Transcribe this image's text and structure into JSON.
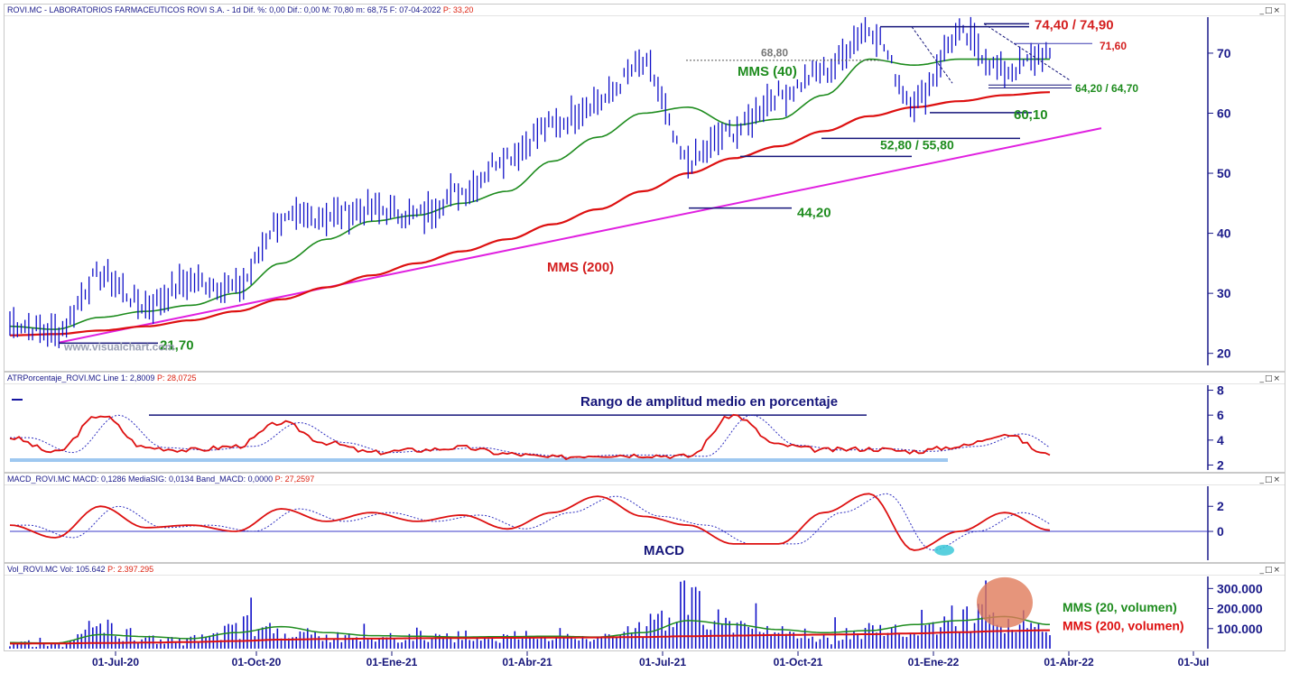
{
  "panels": {
    "price": {
      "header": "ROVI.MC - LABORATORIOS FARMACEUTICOS ROVI S.A. - 1d Dif. %: 0,00 Dif.: 0,00 M: 70,80 m: 68,75 F: 07-04-2022",
      "header_p": "P: 33,20"
    },
    "atr": {
      "header": "ATRPorcentaje_ROVI.MC Line 1: 2,8009",
      "header_p": "P: 28,0725"
    },
    "macd": {
      "header": "MACD_ROVI.MC MACD: 0,1286 MediaSIG: 0,0134 Band_MACD: 0,0000",
      "header_p": "P: 27,2597"
    },
    "vol": {
      "header": "Vol_ROVI.MC Vol: 105.642",
      "header_p": "P: 2.397.295"
    }
  },
  "window_controls": {
    "minimize": "_",
    "restore": "□",
    "close": "×"
  },
  "watermark": "www.visualchart.com",
  "annotations": {
    "level_7440": "74,40 / 74,90",
    "level_7160": "71,60",
    "level_6880": "68,80",
    "level_6420": "64,20 / 64,70",
    "level_6010": "60,10",
    "level_5280": "52,80 / 55,80",
    "level_4420": "44,20",
    "level_2170": "21,70",
    "mms40": "MMS (40)",
    "mms200": "MMS (200)",
    "atr_title": "Rango de amplitud medio en porcentaje",
    "macd_title": "MACD",
    "vol_mms20": "MMS (20, volumen)",
    "vol_mms200": "MMS (200, volumen)"
  },
  "colors": {
    "price": "#1010c8",
    "mms40": "#1e8c1e",
    "mms200": "#dd1010",
    "trend": "#e020e0",
    "accent": "#d42020",
    "axis": "#1a1a8a"
  },
  "chart_data": [
    {
      "type": "line",
      "panel": "price",
      "ylim": [
        18,
        76
      ],
      "yticks": [
        20,
        30,
        40,
        50,
        60,
        70
      ],
      "x_labels": [
        "01-Jul-20",
        "01-Oct-20",
        "01-Ene-21",
        "01-Abr-21",
        "01-Jul-21",
        "01-Oct-21",
        "01-Ene-22",
        "01-Abr-22",
        "01-Jul"
      ],
      "x": [
        "2020-05",
        "2020-06",
        "2020-07",
        "2020-08",
        "2020-09",
        "2020-10",
        "2020-11",
        "2020-12",
        "2021-01",
        "2021-02",
        "2021-03",
        "2021-04",
        "2021-05",
        "2021-06",
        "2021-07",
        "2021-08",
        "2021-09",
        "2021-10",
        "2021-11",
        "2021-12",
        "2022-01",
        "2022-02",
        "2022-03",
        "2022-04"
      ],
      "series": [
        {
          "name": "",
          "values": [
            25,
            23.5,
            33,
            28,
            32,
            31,
            42,
            43,
            44,
            43,
            47,
            53,
            58,
            62,
            68,
            52,
            57,
            63,
            67,
            74,
            62,
            73,
            67,
            70
          ]
        },
        {
          "name": "MMS (40)",
          "values": [
            24.5,
            24,
            26,
            27,
            28,
            30,
            35,
            39,
            42,
            43,
            45,
            47,
            52,
            56,
            60,
            61,
            58,
            59,
            63,
            69,
            68,
            69,
            69,
            69
          ]
        },
        {
          "name": "MMS (200)",
          "values": [
            23,
            23.2,
            23.8,
            24.5,
            25.5,
            27,
            29,
            31,
            33,
            35,
            37,
            39,
            41.5,
            44,
            47,
            50,
            52.5,
            54.5,
            57,
            59.5,
            61,
            62,
            63,
            63.5
          ]
        }
      ]
    },
    {
      "type": "line",
      "panel": "atr",
      "ylim": [
        1.6,
        8.4
      ],
      "yticks": [
        2,
        4,
        6,
        8
      ],
      "x": [
        "2020-05",
        "2020-06",
        "2020-07",
        "2020-08",
        "2020-09",
        "2020-10",
        "2020-11",
        "2020-12",
        "2021-01",
        "2021-02",
        "2021-03",
        "2021-04",
        "2021-05",
        "2021-06",
        "2021-07",
        "2021-08",
        "2021-09",
        "2021-10",
        "2021-11",
        "2021-12",
        "2022-01",
        "2022-02",
        "2022-03",
        "2022-04"
      ],
      "series": [
        {
          "name": "",
          "values": [
            4.2,
            3,
            6,
            3.4,
            3.2,
            3.5,
            5.4,
            3.8,
            3,
            3.2,
            3.4,
            2.9,
            2.6,
            2.8,
            2.8,
            2.7,
            6,
            3.6,
            3.2,
            3.3,
            3.1,
            3.5,
            4.5,
            2.8
          ]
        }
      ]
    },
    {
      "type": "line",
      "panel": "macd",
      "ylim": [
        -2.3,
        3.6
      ],
      "yticks": [
        0,
        2
      ],
      "x": [
        "2020-05",
        "2020-06",
        "2020-07",
        "2020-08",
        "2020-09",
        "2020-10",
        "2020-11",
        "2020-12",
        "2021-01",
        "2021-02",
        "2021-03",
        "2021-04",
        "2021-05",
        "2021-06",
        "2021-07",
        "2021-08",
        "2021-09",
        "2021-10",
        "2021-11",
        "2021-12",
        "2022-01",
        "2022-02",
        "2022-03",
        "2022-04"
      ],
      "series": [
        {
          "name": "",
          "values": [
            0.5,
            -0.5,
            2,
            0.3,
            0.5,
            0,
            1.8,
            0.8,
            1.5,
            0.8,
            1.3,
            0.2,
            1.5,
            2.8,
            1.2,
            0.5,
            -1,
            -1,
            1.5,
            3,
            -1.5,
            0,
            1.5,
            0.1
          ]
        }
      ]
    },
    {
      "type": "bar",
      "panel": "vol",
      "ylim": [
        0,
        360000
      ],
      "yticks": [
        100000,
        200000,
        300000
      ],
      "ytick_labels": [
        "100.000",
        "200.000",
        "300.000"
      ],
      "x": [
        "2020-05",
        "2020-06",
        "2020-07",
        "2020-08",
        "2020-09",
        "2020-10",
        "2020-11",
        "2020-12",
        "2021-01",
        "2021-02",
        "2021-03",
        "2021-04",
        "2021-05",
        "2021-06",
        "2021-07",
        "2021-08",
        "2021-09",
        "2021-10",
        "2021-11",
        "2021-12",
        "2022-01",
        "2022-02",
        "2022-03",
        "2022-04"
      ],
      "values": [
        30000,
        25000,
        120000,
        60000,
        45000,
        130000,
        90000,
        70000,
        60000,
        65000,
        55000,
        60000,
        70000,
        50000,
        120000,
        280000,
        110000,
        80000,
        60000,
        90000,
        140000,
        170000,
        190000,
        105642
      ],
      "series": [
        {
          "name": "MMS (20, volumen)",
          "values": [
            30000,
            28000,
            70000,
            60000,
            50000,
            80000,
            110000,
            80000,
            65000,
            62000,
            58000,
            60000,
            62000,
            58000,
            80000,
            140000,
            120000,
            95000,
            80000,
            90000,
            120000,
            140000,
            160000,
            120000
          ]
        },
        {
          "name": "MMS (200, volumen)",
          "values": [
            25000,
            26000,
            28000,
            30000,
            33000,
            38000,
            45000,
            48000,
            50000,
            52000,
            53000,
            54000,
            55000,
            56000,
            58000,
            62000,
            65000,
            68000,
            70000,
            72000,
            76000,
            82000,
            88000,
            92000
          ]
        }
      ]
    }
  ]
}
